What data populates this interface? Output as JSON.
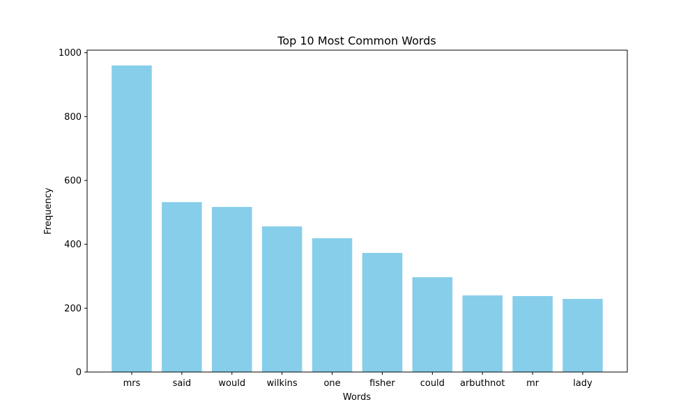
{
  "chart_data": {
    "type": "bar",
    "title": "Top 10 Most Common Words",
    "xlabel": "Words",
    "ylabel": "Frequency",
    "categories": [
      "mrs",
      "said",
      "would",
      "wilkins",
      "one",
      "fisher",
      "could",
      "arbuthnot",
      "mr",
      "lady"
    ],
    "values": [
      960,
      532,
      517,
      456,
      419,
      373,
      297,
      240,
      238,
      229
    ],
    "ylim": [
      0,
      1000
    ],
    "yticks": [
      0,
      200,
      400,
      600,
      800,
      1000
    ],
    "grid": false,
    "bar_color": "#87ceeb"
  }
}
